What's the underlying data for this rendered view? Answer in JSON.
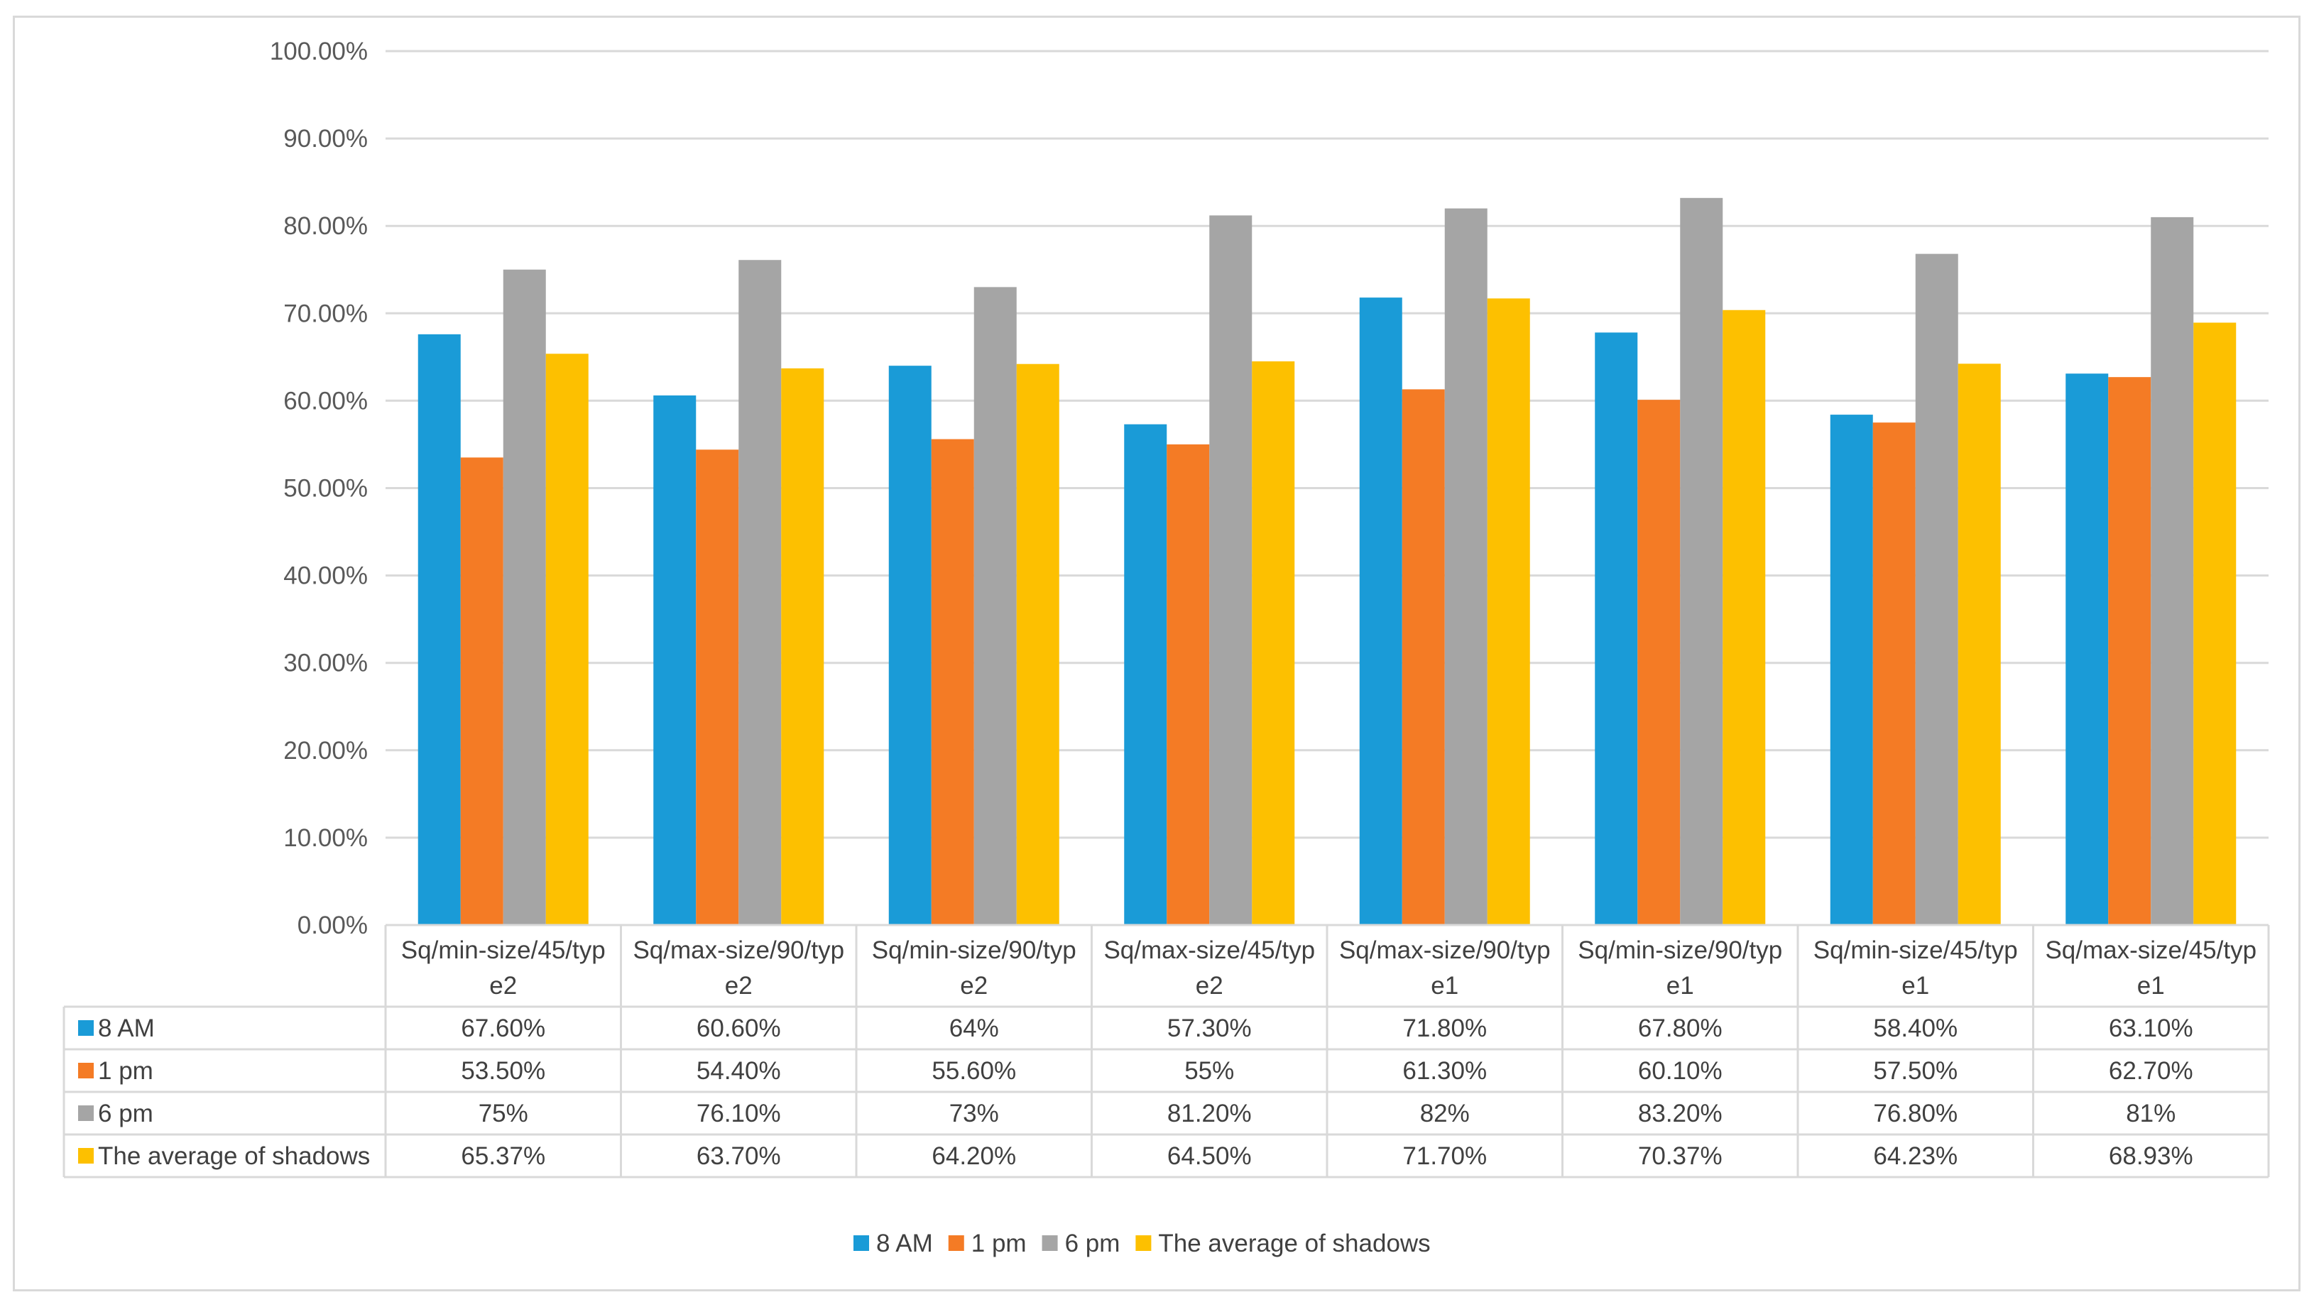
{
  "chart_data": {
    "type": "bar",
    "title": "",
    "xlabel": "",
    "ylabel": "",
    "ylim": [
      0,
      100
    ],
    "y_ticks": [
      "0.00%",
      "10.00%",
      "20.00%",
      "30.00%",
      "40.00%",
      "50.00%",
      "60.00%",
      "70.00%",
      "80.00%",
      "90.00%",
      "100.00%"
    ],
    "grid": true,
    "legend_position": "bottom",
    "categories": [
      [
        "Sq/min-size/45/typ",
        "e2"
      ],
      [
        "Sq/max-size/90/typ",
        "e2"
      ],
      [
        "Sq/min-size/90/typ",
        "e2"
      ],
      [
        "Sq/max-size/45/typ",
        "e2"
      ],
      [
        "Sq/max-size/90/typ",
        "e1"
      ],
      [
        "Sq/min-size/90/typ",
        "e1"
      ],
      [
        "Sq/min-size/45/typ",
        "e1"
      ],
      [
        "Sq/max-size/45/typ",
        "e1"
      ]
    ],
    "series": [
      {
        "name": "8 AM",
        "color": "#1a9bd7",
        "values": [
          67.6,
          60.6,
          64,
          57.3,
          71.8,
          67.8,
          58.4,
          63.1
        ],
        "labels": [
          "67.60%",
          "60.60%",
          "64%",
          "57.30%",
          "71.80%",
          "67.80%",
          "58.40%",
          "63.10%"
        ]
      },
      {
        "name": "1 pm",
        "color": "#f47b25",
        "values": [
          53.5,
          54.4,
          55.6,
          55,
          61.3,
          60.1,
          57.5,
          62.7
        ],
        "labels": [
          "53.50%",
          "54.40%",
          "55.60%",
          "55%",
          "61.30%",
          "60.10%",
          "57.50%",
          "62.70%"
        ]
      },
      {
        "name": "6 pm",
        "color": "#a5a5a5",
        "values": [
          75,
          76.1,
          73,
          81.2,
          82,
          83.2,
          76.8,
          81
        ],
        "labels": [
          "75%",
          "76.10%",
          "73%",
          "81.20%",
          "82%",
          "83.20%",
          "76.80%",
          "81%"
        ]
      },
      {
        "name": "The average of shadows",
        "color": "#fdc000",
        "values": [
          65.37,
          63.7,
          64.2,
          64.5,
          71.7,
          70.37,
          64.23,
          68.93
        ],
        "labels": [
          "65.37%",
          "63.70%",
          "64.20%",
          "64.50%",
          "71.70%",
          "70.37%",
          "64.23%",
          "68.93%"
        ]
      }
    ]
  }
}
